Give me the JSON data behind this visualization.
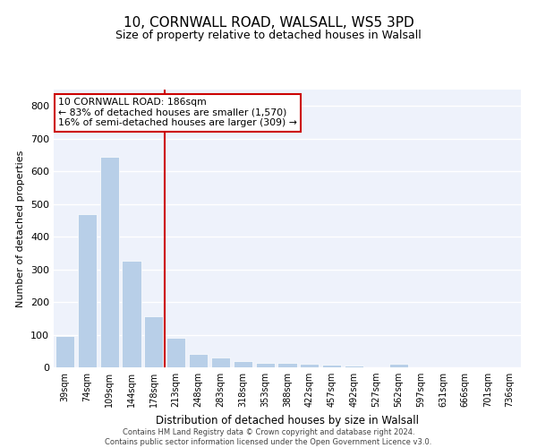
{
  "title_line1": "10, CORNWALL ROAD, WALSALL, WS5 3PD",
  "title_line2": "Size of property relative to detached houses in Walsall",
  "xlabel": "Distribution of detached houses by size in Walsall",
  "ylabel": "Number of detached properties",
  "categories": [
    "39sqm",
    "74sqm",
    "109sqm",
    "144sqm",
    "178sqm",
    "213sqm",
    "248sqm",
    "283sqm",
    "318sqm",
    "353sqm",
    "388sqm",
    "422sqm",
    "457sqm",
    "492sqm",
    "527sqm",
    "562sqm",
    "597sqm",
    "631sqm",
    "666sqm",
    "701sqm",
    "736sqm"
  ],
  "values": [
    95,
    470,
    645,
    325,
    155,
    90,
    40,
    30,
    20,
    15,
    15,
    10,
    8,
    5,
    0,
    10,
    0,
    0,
    0,
    0,
    0
  ],
  "bar_color": "#b8cfe8",
  "vline_x_index": 4,
  "vline_color": "#cc0000",
  "annotation_line1": "10 CORNWALL ROAD: 186sqm",
  "annotation_line2": "← 83% of detached houses are smaller (1,570)",
  "annotation_line3": "16% of semi-detached houses are larger (309) →",
  "annotation_box_facecolor": "#ffffff",
  "annotation_box_edgecolor": "#cc0000",
  "ylim": [
    0,
    850
  ],
  "yticks": [
    0,
    100,
    200,
    300,
    400,
    500,
    600,
    700,
    800
  ],
  "background_color": "#eef2fb",
  "grid_color": "#ffffff",
  "footer_line1": "Contains HM Land Registry data © Crown copyright and database right 2024.",
  "footer_line2": "Contains public sector information licensed under the Open Government Licence v3.0."
}
